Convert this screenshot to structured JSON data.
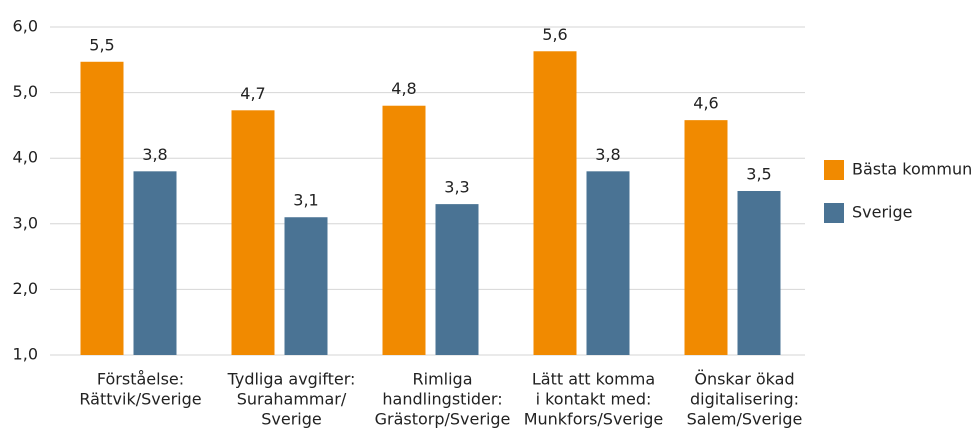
{
  "chart_data": {
    "type": "bar",
    "categories": [
      [
        "Förståelse:",
        "Rättvik/Sverige"
      ],
      [
        "Tydliga avgifter:",
        "Surahammar/",
        "Sverige"
      ],
      [
        "Rimliga",
        "handlingstider:",
        "Grästorp/Sverige"
      ],
      [
        "Lätt att komma",
        "i kontakt med:",
        "Munkfors/Sverige"
      ],
      [
        "Önskar ökad",
        "digitalisering:",
        "Salem/Sverige"
      ]
    ],
    "series": [
      {
        "name": "Bästa kommun",
        "color": "#f18a00",
        "values": [
          5.47,
          4.73,
          4.8,
          5.63,
          4.58
        ],
        "value_labels": [
          "5,5",
          "4,7",
          "4,8",
          "5,6",
          "4,6"
        ]
      },
      {
        "name": "Sverige",
        "color": "#4a7394",
        "values": [
          3.8,
          3.1,
          3.3,
          3.8,
          3.5
        ],
        "value_labels": [
          "3,8",
          "3,1",
          "3,3",
          "3,8",
          "3,5"
        ]
      }
    ],
    "ylim": [
      1,
      6
    ],
    "yticks": [
      {
        "value": 1,
        "label": "1,0"
      },
      {
        "value": 2,
        "label": "2,0"
      },
      {
        "value": 3,
        "label": "3,0"
      },
      {
        "value": 4,
        "label": "4,0"
      },
      {
        "value": 5,
        "label": "5,0"
      },
      {
        "value": 6,
        "label": "6,0"
      }
    ],
    "grid": true,
    "legend": "right"
  }
}
